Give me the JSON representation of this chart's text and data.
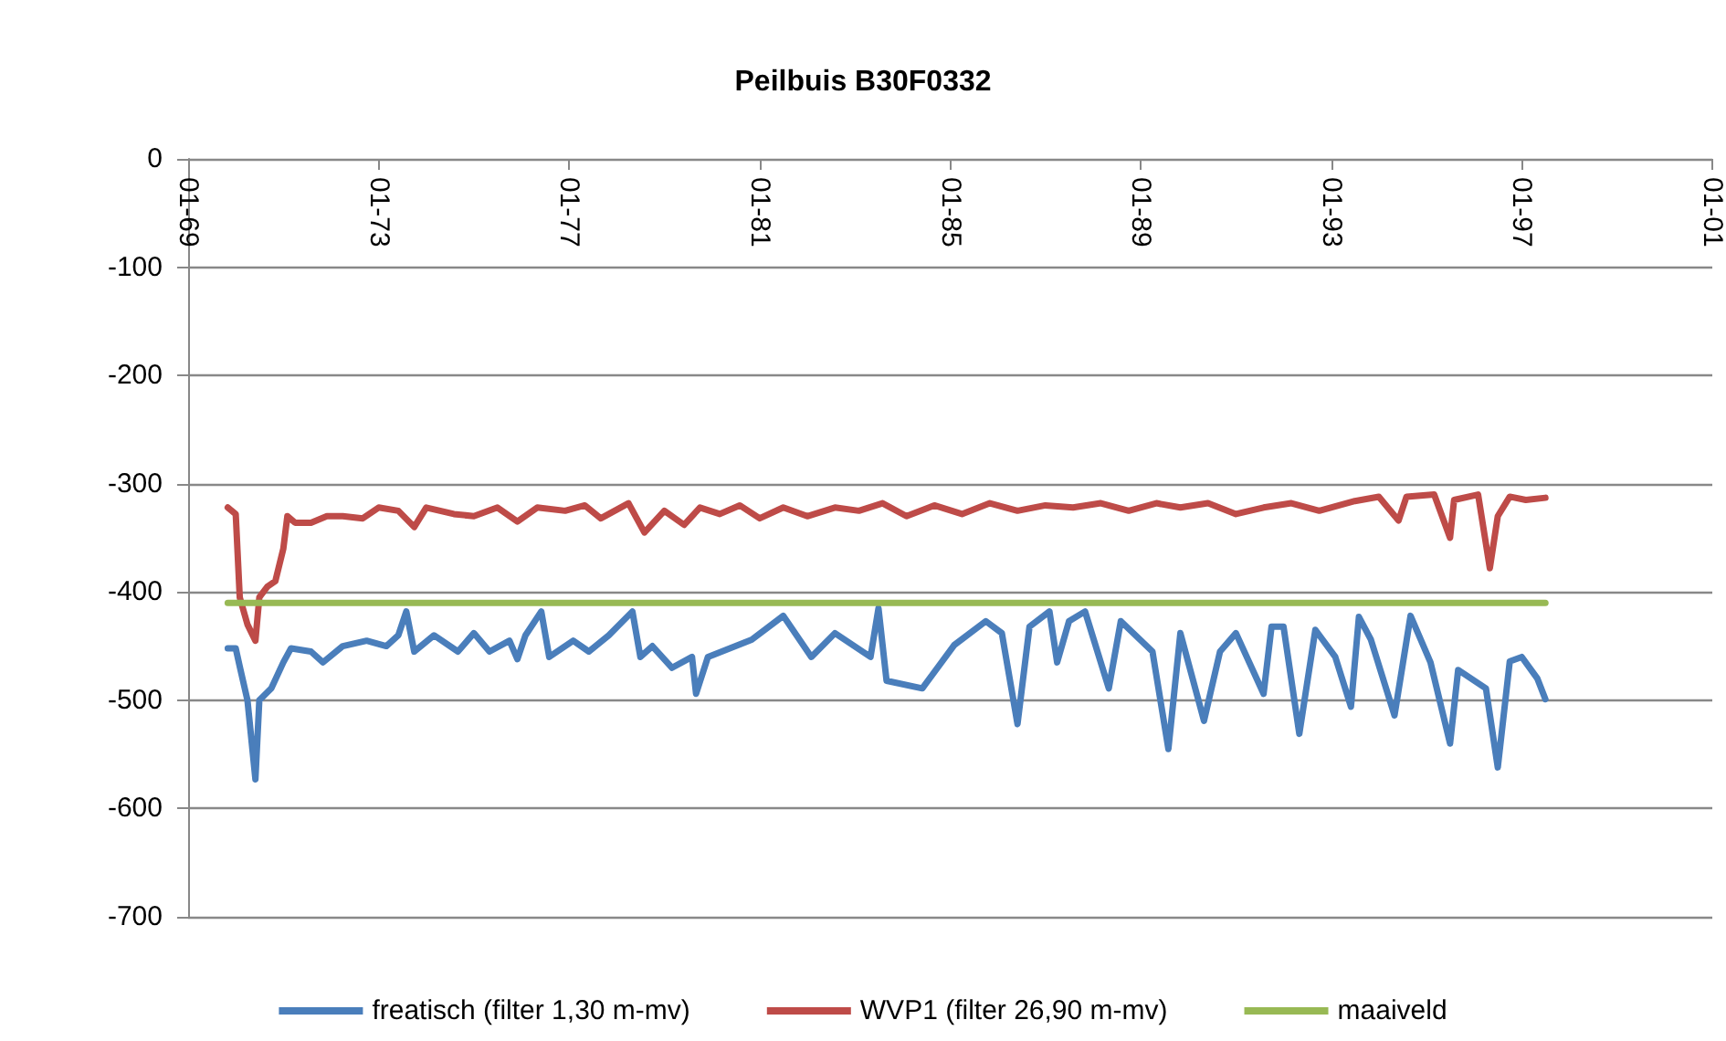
{
  "chart_data": {
    "type": "line",
    "title": "Peilbuis B30F0332",
    "xlim": [
      "1969-01",
      "2001-01"
    ],
    "xticks": [
      {
        "value": "1969-01",
        "label": "01-69"
      },
      {
        "value": "1973-01",
        "label": "01-73"
      },
      {
        "value": "1977-01",
        "label": "01-77"
      },
      {
        "value": "1981-01",
        "label": "01-81"
      },
      {
        "value": "1985-01",
        "label": "01-85"
      },
      {
        "value": "1989-01",
        "label": "01-89"
      },
      {
        "value": "1993-01",
        "label": "01-93"
      },
      {
        "value": "1997-01",
        "label": "01-97"
      },
      {
        "value": "2001-01",
        "label": "01-01"
      }
    ],
    "ylim": [
      -700,
      0
    ],
    "yticks": [
      -700,
      -600,
      -500,
      -400,
      -300,
      -200,
      -100,
      0
    ],
    "grid": "y",
    "legend": "bottom",
    "marker": "none",
    "line_style": "solid",
    "series": [
      {
        "name": "freatisch (filter 1,30 m-mv)",
        "color": "#4a7ebb",
        "x": [
          "1969-11",
          "1970-01",
          "1970-02",
          "1970-04",
          "1970-06",
          "1970-07",
          "1970-10",
          "1971-01",
          "1971-03",
          "1971-08",
          "1971-11",
          "1972-04",
          "1972-10",
          "1973-03",
          "1973-06",
          "1973-08",
          "1973-10",
          "1974-03",
          "1974-09",
          "1975-01",
          "1975-05",
          "1975-10",
          "1975-12",
          "1976-02",
          "1976-06",
          "1976-08",
          "1977-02",
          "1977-06",
          "1977-11",
          "1978-05",
          "1978-07",
          "1978-10",
          "1979-03",
          "1979-08",
          "1979-09",
          "1979-12",
          "1980-11",
          "1981-07",
          "1982-02",
          "1982-08",
          "1983-05",
          "1983-07",
          "1983-09",
          "1984-06",
          "1985-02",
          "1985-10",
          "1986-02",
          "1986-06",
          "1986-09",
          "1987-02",
          "1987-04",
          "1987-07",
          "1987-11",
          "1988-05",
          "1988-08",
          "1989-04",
          "1989-08",
          "1989-11",
          "1990-05",
          "1990-09",
          "1991-01",
          "1991-08",
          "1991-10",
          "1992-01",
          "1992-05",
          "1992-09",
          "1993-02",
          "1993-06",
          "1993-08",
          "1993-11",
          "1994-05",
          "1994-09",
          "1995-02",
          "1995-07",
          "1995-09",
          "1996-04",
          "1996-07",
          "1996-10",
          "1997-01",
          "1997-05",
          "1997-07"
        ],
        "values": [
          -452,
          -452,
          -469,
          -500,
          -573,
          -500,
          -489,
          -465,
          -452,
          -455,
          -465,
          -450,
          -445,
          -450,
          -440,
          -418,
          -455,
          -440,
          -455,
          -438,
          -455,
          -445,
          -462,
          -440,
          -418,
          -460,
          -445,
          -455,
          -440,
          -418,
          -460,
          -450,
          -470,
          -460,
          -494,
          -460,
          -444,
          -422,
          -460,
          -438,
          -460,
          -415,
          -482,
          -489,
          -449,
          -427,
          -438,
          -522,
          -432,
          -418,
          -465,
          -427,
          -418,
          -489,
          -427,
          -455,
          -545,
          -438,
          -519,
          -455,
          -438,
          -494,
          -432,
          -432,
          -531,
          -435,
          -460,
          -506,
          -423,
          -444,
          -514,
          -422,
          -465,
          -540,
          -472,
          -489,
          -562,
          -464,
          -460,
          -480,
          -499
        ]
      },
      {
        "name": "WVP1 (filter 26,90 m-mv)",
        "color": "#be4b48",
        "x": [
          "1969-11",
          "1970-01",
          "1970-02",
          "1970-04",
          "1970-06",
          "1970-07",
          "1970-09",
          "1970-11",
          "1971-01",
          "1971-02",
          "1971-04",
          "1971-08",
          "1971-12",
          "1972-04",
          "1972-09",
          "1973-01",
          "1973-06",
          "1973-10",
          "1974-01",
          "1974-08",
          "1975-01",
          "1975-07",
          "1975-12",
          "1976-05",
          "1976-12",
          "1977-05",
          "1977-09",
          "1978-04",
          "1978-08",
          "1979-01",
          "1979-06",
          "1979-10",
          "1980-03",
          "1980-08",
          "1981-01",
          "1981-07",
          "1982-01",
          "1982-08",
          "1983-02",
          "1983-08",
          "1984-02",
          "1984-09",
          "1985-04",
          "1985-11",
          "1986-06",
          "1987-01",
          "1987-08",
          "1988-03",
          "1988-10",
          "1989-05",
          "1989-11",
          "1990-06",
          "1991-01",
          "1991-08",
          "1992-03",
          "1992-10",
          "1993-07",
          "1994-01",
          "1994-06",
          "1994-08",
          "1995-03",
          "1995-07",
          "1995-08",
          "1996-02",
          "1996-05",
          "1996-07",
          "1996-10",
          "1997-02",
          "1997-07"
        ],
        "values": [
          -322,
          -328,
          -405,
          -430,
          -445,
          -405,
          -395,
          -390,
          -360,
          -330,
          -336,
          -336,
          -330,
          -330,
          -332,
          -322,
          -325,
          -340,
          -322,
          -328,
          -330,
          -322,
          -335,
          -322,
          -325,
          -320,
          -332,
          -318,
          -345,
          -325,
          -338,
          -322,
          -328,
          -320,
          -332,
          -322,
          -330,
          -322,
          -325,
          -318,
          -330,
          -320,
          -328,
          -318,
          -325,
          -320,
          -322,
          -318,
          -325,
          -318,
          -322,
          -318,
          -328,
          -322,
          -318,
          -325,
          -316,
          -312,
          -334,
          -312,
          -310,
          -350,
          -315,
          -310,
          -378,
          -330,
          -312,
          -315,
          -313
        ]
      },
      {
        "name": "maaiveld",
        "color": "#98b954",
        "x": [
          "1969-11",
          "1997-07"
        ],
        "values": [
          -410,
          -410
        ]
      }
    ]
  }
}
